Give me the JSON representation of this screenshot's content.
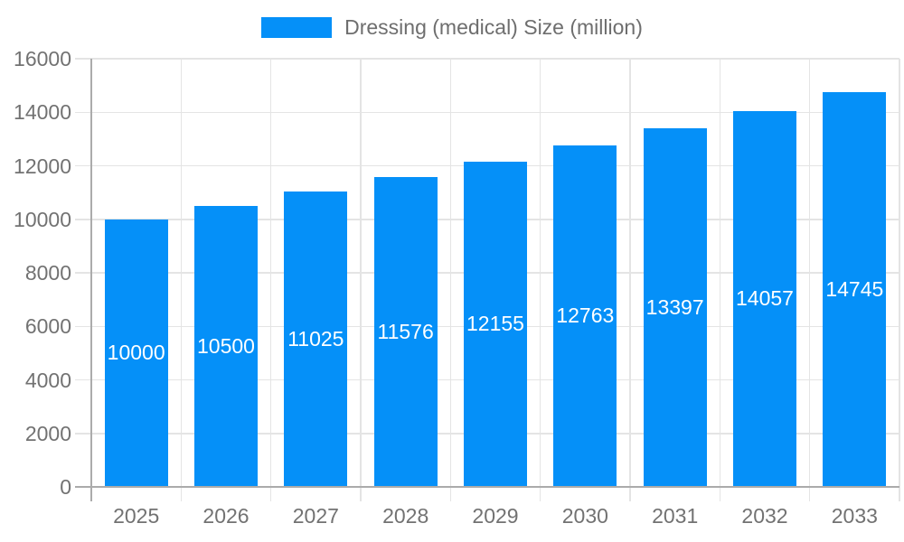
{
  "legend": {
    "label": "Dressing (medical) Size (million)",
    "position": "top"
  },
  "chart_data": {
    "type": "bar",
    "title": "Dressing (medical) Size (million)",
    "xlabel": "",
    "ylabel": "",
    "categories": [
      "2025",
      "2026",
      "2027",
      "2028",
      "2029",
      "2030",
      "2031",
      "2032",
      "2033"
    ],
    "series": [
      {
        "name": "Dressing (medical) Size (million)",
        "values": [
          10000,
          10500,
          11025,
          11576,
          12155,
          12763,
          13397,
          14057,
          14745
        ]
      }
    ],
    "value_labels": [
      "10000",
      "10500",
      "11025",
      "11576",
      "12155",
      "12763",
      "13397",
      "14057",
      "14745"
    ],
    "ylim": [
      0,
      16000
    ],
    "ytick_step": 2000,
    "yticks": [
      0,
      2000,
      4000,
      6000,
      8000,
      10000,
      12000,
      14000,
      16000
    ],
    "grid": true,
    "legend_position": "top",
    "colors": {
      "bar": "#0590f8",
      "value_label": "#ffffff",
      "axis_text": "#727272",
      "title_text": "#6e6e6e",
      "gridline": "#e4e4e4",
      "axis_line": "#ababab",
      "background": "#ffffff"
    }
  }
}
